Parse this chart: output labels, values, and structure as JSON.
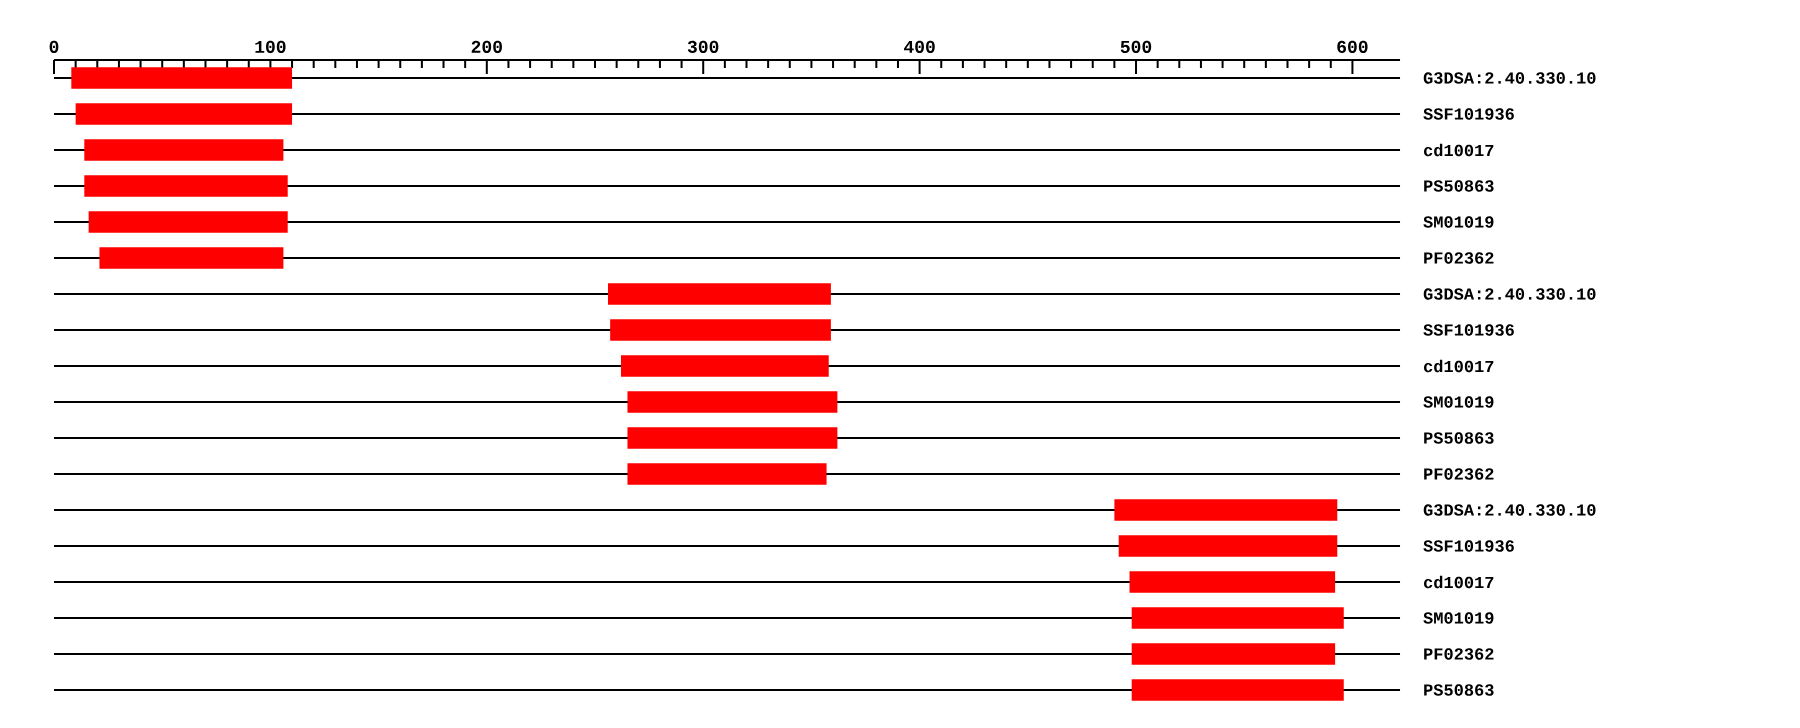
{
  "chart_data": {
    "type": "bar",
    "orientation": "horizontal",
    "categories": [
      "G3DSA:2.40.330.10",
      "SSF101936",
      "cd10017",
      "PS50863",
      "SM01019",
      "PF02362",
      "G3DSA:2.40.330.10",
      "SSF101936",
      "cd10017",
      "SM01019",
      "PS50863",
      "PF02362",
      "G3DSA:2.40.330.10",
      "SSF101936",
      "cd10017",
      "SM01019",
      "PF02362",
      "PS50863"
    ],
    "base": [
      8,
      10,
      14,
      14,
      16,
      21,
      256,
      257,
      262,
      265,
      265,
      265,
      490,
      492,
      497,
      498,
      498,
      498
    ],
    "values": [
      102,
      100,
      92,
      94,
      92,
      85,
      103,
      102,
      96,
      97,
      97,
      92,
      103,
      101,
      95,
      98,
      94,
      98
    ],
    "color": "#ff0000",
    "xlim": [
      0,
      622
    ],
    "xticks": [
      0,
      100,
      200,
      300,
      400,
      500,
      600
    ],
    "grid": "y"
  }
}
